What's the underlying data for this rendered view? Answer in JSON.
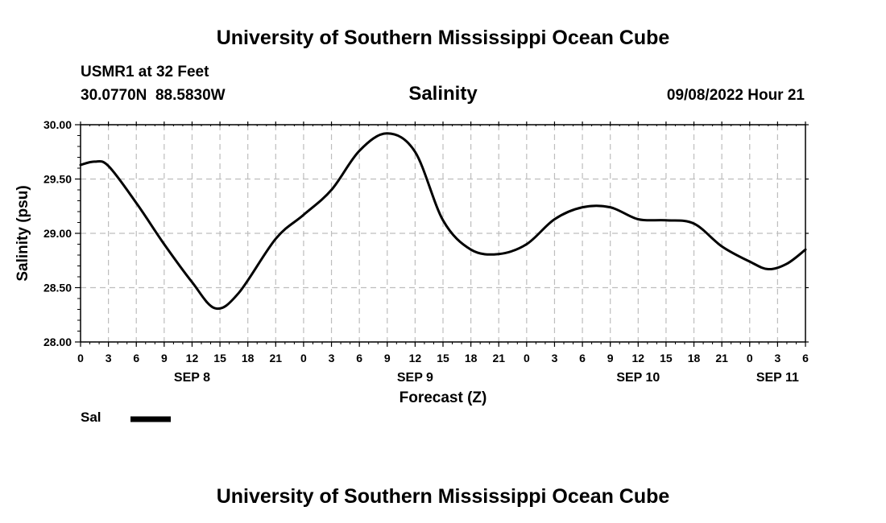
{
  "header": {
    "title": "University of Southern Mississippi Ocean Cube",
    "station": "USMR1 at 32 Feet",
    "coords": "30.0770N  88.5830W",
    "datetime": "09/08/2022 Hour 21"
  },
  "footer": {
    "title": "University of Southern Mississippi Ocean Cube"
  },
  "chart_data": {
    "type": "line",
    "title": "Salinity",
    "xlabel": "Forecast (Z)",
    "ylabel": "Salinity (psu)",
    "ylim": [
      28.0,
      30.0
    ],
    "xlim": [
      0,
      78
    ],
    "grid": true,
    "y_ticks": [
      "28.00",
      "28.50",
      "29.00",
      "29.50",
      "30.00"
    ],
    "x_tick_labels": [
      "0",
      "3",
      "6",
      "9",
      "12",
      "15",
      "18",
      "21",
      "0",
      "3",
      "6",
      "9",
      "12",
      "15",
      "18",
      "21",
      "0",
      "3",
      "6",
      "9",
      "12",
      "15",
      "18",
      "21",
      "0",
      "3",
      "6"
    ],
    "day_labels": [
      {
        "label": "SEP 8",
        "hour": 12
      },
      {
        "label": "SEP 9",
        "hour": 36
      },
      {
        "label": "SEP 10",
        "hour": 60
      },
      {
        "label": "SEP 11",
        "hour": 75
      }
    ],
    "legend": [
      {
        "name": "Sal",
        "color": "#000000"
      }
    ],
    "series": [
      {
        "name": "Sal",
        "color": "#000000",
        "x": [
          0,
          1.5,
          3,
          6,
          9,
          12,
          14.5,
          17,
          21,
          24,
          27,
          30,
          33,
          36,
          39,
          42,
          45,
          48,
          51,
          54,
          57,
          60,
          63,
          66,
          69,
          72,
          74,
          76,
          78
        ],
        "values": [
          29.63,
          29.66,
          29.62,
          29.28,
          28.9,
          28.55,
          28.31,
          28.45,
          28.95,
          29.17,
          29.4,
          29.76,
          29.92,
          29.75,
          29.12,
          28.85,
          28.81,
          28.9,
          29.13,
          29.24,
          29.24,
          29.13,
          29.12,
          29.09,
          28.88,
          28.74,
          28.67,
          28.72,
          28.85
        ]
      }
    ]
  }
}
